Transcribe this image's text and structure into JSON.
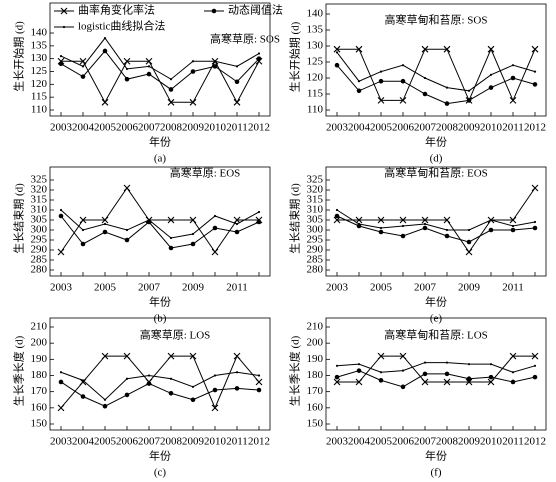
{
  "chart_data": [
    {
      "type": "line",
      "title": "高寒草原: SOS",
      "ylabel": "生长开始期 (d)",
      "xlabel": "年份",
      "caption": "(a)",
      "legend": "upper left",
      "categories": [
        "2003",
        "2004",
        "2005",
        "2006",
        "2007",
        "2008",
        "2009",
        "2010",
        "2011",
        "2012"
      ],
      "series": [
        {
          "name": "曲率角变化率法",
          "color": "#000000",
          "values": [
            129,
            129,
            113,
            129,
            129,
            113,
            113,
            129,
            113,
            129
          ]
        },
        {
          "name": "动态阈值法",
          "color": "#000000",
          "values": [
            128,
            123,
            133,
            122,
            124,
            118,
            125,
            127,
            121,
            130
          ]
        },
        {
          "name": "logistic曲线拟合法",
          "color": "#000000",
          "values": [
            131,
            127,
            138,
            126,
            127,
            122,
            129,
            129,
            127,
            132
          ]
        }
      ],
      "ylim": [
        110,
        140
      ],
      "yticks": [
        110,
        115,
        120,
        125,
        130,
        135,
        140
      ]
    },
    {
      "type": "line",
      "title": "高寒草甸和苔原: SOS",
      "ylabel": "生长开始期 (d)",
      "xlabel": "年份",
      "caption": "(d)",
      "categories": [
        "2003",
        "2004",
        "2005",
        "2006",
        "2007",
        "2008",
        "2009",
        "2010",
        "2011",
        "2012"
      ],
      "series": [
        {
          "color": "#000000",
          "values": [
            129,
            129,
            113,
            113,
            129,
            129,
            113,
            129,
            113,
            129
          ]
        },
        {
          "color": "#000000",
          "values": [
            124,
            116,
            119,
            119,
            115,
            112,
            113,
            117,
            120,
            118
          ]
        },
        {
          "color": "#000000",
          "values": [
            128,
            119,
            122,
            124,
            120,
            117,
            116,
            121,
            124,
            122
          ]
        }
      ],
      "ylim": [
        110,
        140
      ],
      "yticks": [
        110,
        115,
        120,
        125,
        130,
        135,
        140
      ]
    },
    {
      "type": "line",
      "title": "高寒草原: EOS",
      "ylabel": "生长结束期 (d)",
      "xlabel": "年份",
      "caption": "(b)",
      "categories": [
        "2003",
        null,
        "2005",
        null,
        "2007",
        null,
        "2009",
        null,
        "2011",
        null
      ],
      "series": [
        {
          "color": "#000000",
          "values": [
            289,
            305,
            305,
            321,
            305,
            305,
            305,
            289,
            305,
            305
          ]
        },
        {
          "color": "#000000",
          "values": [
            307,
            293,
            299,
            295,
            304,
            291,
            293,
            301,
            299,
            304
          ]
        },
        {
          "color": "#000000",
          "values": [
            310,
            300,
            303,
            300,
            305,
            296,
            298,
            307,
            303,
            309
          ]
        }
      ],
      "ylim": [
        280,
        325
      ],
      "yticks": [
        280,
        285,
        290,
        295,
        300,
        305,
        310,
        315,
        320,
        325
      ]
    },
    {
      "type": "line",
      "title": "高寒草甸和苔原: EOS",
      "ylabel": "生长结束期 (d)",
      "xlabel": "年份",
      "caption": "(e)",
      "categories": [
        "2003",
        null,
        "2005",
        null,
        "2007",
        null,
        "2009",
        null,
        "2011",
        null
      ],
      "series": [
        {
          "color": "#000000",
          "values": [
            305,
            305,
            305,
            305,
            305,
            305,
            289,
            305,
            305,
            321
          ]
        },
        {
          "color": "#000000",
          "values": [
            307,
            302,
            299,
            297,
            301,
            297,
            294,
            300,
            300,
            301
          ]
        },
        {
          "color": "#000000",
          "values": [
            310,
            303,
            301,
            302,
            303,
            300,
            300,
            305,
            302,
            304
          ]
        }
      ],
      "ylim": [
        280,
        325
      ],
      "yticks": [
        280,
        285,
        290,
        295,
        300,
        305,
        310,
        315,
        320,
        325
      ]
    },
    {
      "type": "line",
      "title": "高寒草原: LOS",
      "ylabel": "生长季长度 (d)",
      "xlabel": "年份",
      "caption": "(c)",
      "categories": [
        "2003",
        "2004",
        "2005",
        "2006",
        "2007",
        "2008",
        "2009",
        "2010",
        "2011",
        "2012"
      ],
      "series": [
        {
          "color": "#000000",
          "values": [
            160,
            176,
            192,
            192,
            176,
            192,
            192,
            160,
            192,
            176
          ]
        },
        {
          "color": "#000000",
          "values": [
            176,
            167,
            161,
            168,
            175,
            169,
            165,
            171,
            172,
            171
          ]
        },
        {
          "color": "#000000",
          "values": [
            182,
            177,
            165,
            178,
            180,
            178,
            173,
            180,
            182,
            180
          ]
        }
      ],
      "ylim": [
        150,
        210
      ],
      "yticks": [
        150,
        160,
        170,
        180,
        190,
        200,
        210
      ]
    },
    {
      "type": "line",
      "title": "高寒草甸和苔原: LOS",
      "ylabel": "生长季长度 (d)",
      "xlabel": "年份",
      "caption": "(f)",
      "categories": [
        "2003",
        "2004",
        "2005",
        "2006",
        "2007",
        "2008",
        "2009",
        "2010",
        "2011",
        "2012"
      ],
      "series": [
        {
          "color": "#000000",
          "values": [
            176,
            176,
            192,
            192,
            176,
            176,
            176,
            176,
            192,
            192
          ]
        },
        {
          "color": "#000000",
          "values": [
            179,
            183,
            177,
            173,
            181,
            181,
            178,
            179,
            176,
            179
          ]
        },
        {
          "color": "#000000",
          "values": [
            186,
            187,
            182,
            183,
            188,
            188,
            187,
            187,
            182,
            186
          ]
        }
      ],
      "ylim": [
        150,
        210
      ],
      "yticks": [
        150,
        160,
        170,
        180,
        190,
        200,
        210
      ]
    }
  ]
}
